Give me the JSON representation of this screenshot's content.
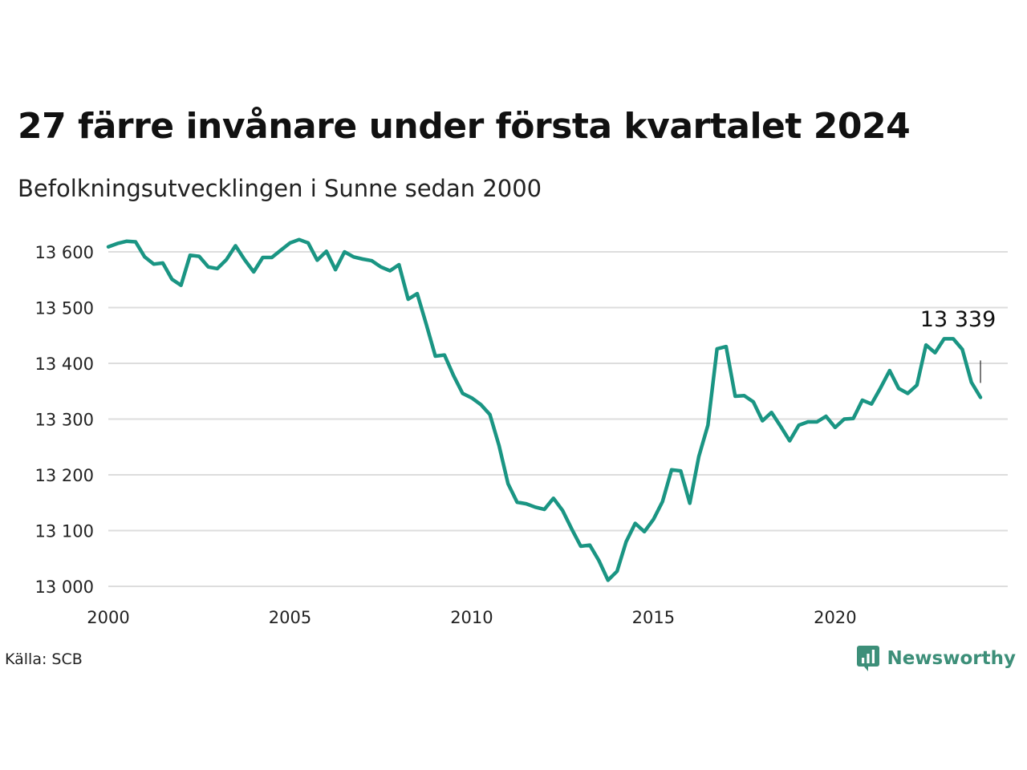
{
  "header": {
    "title": "27 färre invånare under första kvartalet 2024",
    "subtitle": "Befolkningsutvecklingen i Sunne sedan 2000"
  },
  "footer": {
    "source": "Källa: SCB",
    "brand": "Newsworthy",
    "brand_icon": "bar-chart-speech-bubble-icon"
  },
  "colors": {
    "line": "#1a9583",
    "grid": "#dddddd",
    "brand": "#3d8f79"
  },
  "chart_data": {
    "type": "line",
    "x_start": 2000.0,
    "x_step": 0.25,
    "values": [
      13609,
      13615,
      13619,
      13618,
      13591,
      13578,
      13580,
      13551,
      13540,
      13594,
      13592,
      13573,
      13570,
      13586,
      13611,
      13586,
      13564,
      13590,
      13590,
      13603,
      13616,
      13622,
      13616,
      13585,
      13601,
      13568,
      13600,
      13591,
      13587,
      13584,
      13573,
      13566,
      13577,
      13515,
      13525,
      13470,
      13413,
      13415,
      13378,
      13346,
      13338,
      13326,
      13308,
      13253,
      13184,
      13151,
      13148,
      13142,
      13138,
      13158,
      13136,
      13103,
      13072,
      13074,
      13046,
      13011,
      13027,
      13080,
      13113,
      13098,
      13120,
      13152,
      13209,
      13207,
      13149,
      13233,
      13289,
      13426,
      13430,
      13341,
      13342,
      13331,
      13297,
      13312,
      13287,
      13261,
      13289,
      13295,
      13295,
      13305,
      13285,
      13300,
      13301,
      13334,
      13327,
      13356,
      13387,
      13355,
      13346,
      13361,
      13433,
      13419,
      13444,
      13444,
      13425,
      13366,
      13339
    ],
    "xlim": [
      2000,
      2024.75
    ],
    "ylim": [
      13000,
      13600
    ],
    "yticks": [
      13000,
      13100,
      13200,
      13300,
      13400,
      13500,
      13600
    ],
    "ytick_labels": [
      "13 000",
      "13 100",
      "13 200",
      "13 300",
      "13 400",
      "13 500",
      "13 600"
    ],
    "xticks": [
      2000,
      2005,
      2010,
      2015,
      2020
    ],
    "xtick_labels": [
      "2000",
      "2005",
      "2010",
      "2015",
      "2020"
    ],
    "grid": true,
    "annotation": {
      "label": "13 339",
      "x": 2024.0,
      "y": 13339
    }
  }
}
